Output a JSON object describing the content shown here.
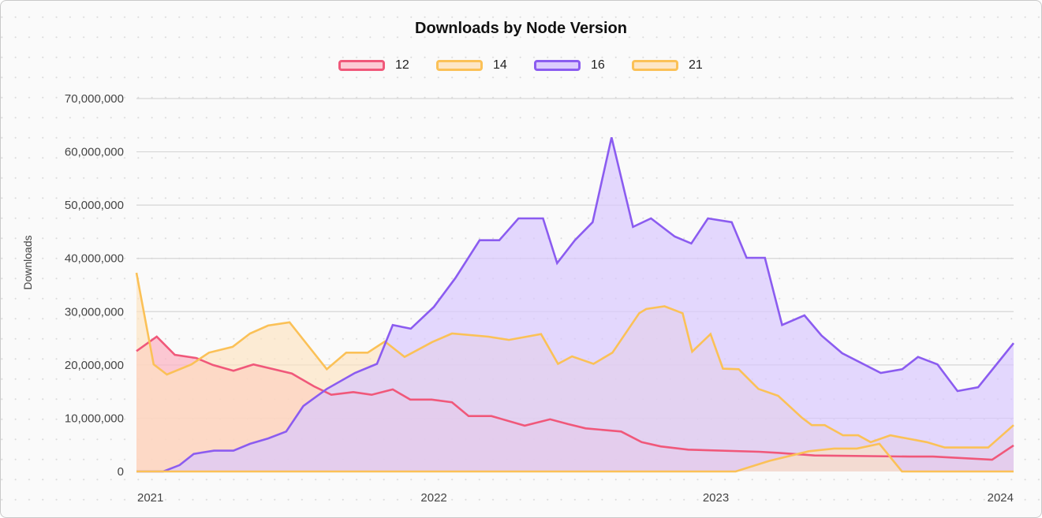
{
  "chart_data": {
    "type": "area",
    "title": "Downloads by Node Version",
    "xlabel": "",
    "ylabel": "Downloads",
    "ylim": [
      0,
      70000000
    ],
    "xlim": [
      2020.945,
      2024.056
    ],
    "grid": true,
    "legend_position": "top",
    "y_ticks": [
      "0",
      "10,000,000",
      "20,000,000",
      "30,000,000",
      "40,000,000",
      "50,000,000",
      "60,000,000",
      "70,000,000"
    ],
    "y_tick_values": [
      0,
      10000000,
      20000000,
      30000000,
      40000000,
      50000000,
      60000000,
      70000000
    ],
    "x_ticks": [
      "2021",
      "2022",
      "2023",
      "2024"
    ],
    "x_tick_values": [
      2021,
      2022,
      2023,
      2024
    ],
    "series": [
      {
        "name": "12",
        "stroke": "#f0587a",
        "fill": "#fbb6c4",
        "x": [
          2020.945,
          2021.017,
          2021.081,
          2021.157,
          2021.216,
          2021.289,
          2021.36,
          2021.496,
          2021.574,
          2021.636,
          2021.714,
          2021.779,
          2021.854,
          2021.916,
          2021.992,
          2022.064,
          2022.123,
          2022.204,
          2022.322,
          2022.412,
          2022.476,
          2022.538,
          2022.664,
          2022.737,
          2022.804,
          2022.902,
          2023.154,
          2023.224,
          2023.35,
          2023.686,
          2023.77,
          2023.98,
          2024.056
        ],
        "values": [
          22600000,
          25300000,
          21900000,
          21300000,
          20000000,
          18900000,
          20100000,
          18400000,
          16000000,
          14400000,
          14900000,
          14400000,
          15400000,
          13500000,
          13500000,
          13000000,
          10400000,
          10400000,
          8600000,
          9800000,
          8900000,
          8100000,
          7500000,
          5500000,
          4700000,
          4100000,
          3700000,
          3500000,
          3000000,
          2800000,
          2800000,
          2200000,
          4900000
        ]
      },
      {
        "name": "14",
        "stroke": "#fbc157",
        "fill": "#fde4c0",
        "x": [
          2020.945,
          2021.006,
          2021.053,
          2021.14,
          2021.202,
          2021.286,
          2021.348,
          2021.412,
          2021.488,
          2021.62,
          2021.689,
          2021.765,
          2021.826,
          2021.896,
          2021.994,
          2022.064,
          2022.193,
          2022.266,
          2022.38,
          2022.44,
          2022.49,
          2022.566,
          2022.633,
          2022.728,
          2022.753,
          2022.818,
          2022.882,
          2022.916,
          2022.981,
          2023.025,
          2023.081,
          2023.151,
          2023.221,
          2023.305,
          2023.34,
          2023.386,
          2023.451,
          2023.505,
          2023.549,
          2023.619,
          2023.658,
          2023.748,
          2023.812,
          2023.966,
          2024.056
        ],
        "values": [
          37300000,
          20100000,
          18200000,
          20100000,
          22300000,
          23400000,
          25900000,
          27400000,
          28000000,
          19200000,
          22300000,
          22300000,
          24400000,
          21500000,
          24300000,
          25900000,
          25300000,
          24700000,
          25800000,
          20200000,
          21600000,
          20200000,
          22300000,
          29700000,
          30500000,
          31000000,
          29700000,
          22500000,
          25800000,
          19300000,
          19200000,
          15500000,
          14200000,
          10100000,
          8700000,
          8700000,
          6800000,
          6800000,
          5500000,
          6800000,
          6400000,
          5500000,
          4500000,
          4500000,
          8700000
        ]
      },
      {
        "name": "16",
        "stroke": "#8b5cf0",
        "fill": "#d9c8fd",
        "x": [
          2020.945,
          2021.04,
          2021.098,
          2021.148,
          2021.22,
          2021.289,
          2021.348,
          2021.412,
          2021.476,
          2021.537,
          2021.62,
          2021.72,
          2021.798,
          2021.854,
          2021.918,
          2022.0,
          2022.076,
          2022.162,
          2022.232,
          2022.3,
          2022.387,
          2022.437,
          2022.5,
          2022.563,
          2022.63,
          2022.706,
          2022.77,
          2022.854,
          2022.913,
          2022.972,
          2023.056,
          2023.109,
          2023.174,
          2023.235,
          2023.314,
          2023.375,
          2023.448,
          2023.585,
          2023.661,
          2023.717,
          2023.786,
          2023.857,
          2023.93,
          2024.056
        ],
        "values": [
          0,
          0,
          1200000,
          3300000,
          3900000,
          3900000,
          5200000,
          6200000,
          7500000,
          12300000,
          15500000,
          18500000,
          20200000,
          27500000,
          26800000,
          30900000,
          36300000,
          43400000,
          43400000,
          47500000,
          47500000,
          39100000,
          43400000,
          46800000,
          62700000,
          45900000,
          47500000,
          44100000,
          42800000,
          47500000,
          46800000,
          40100000,
          40100000,
          27500000,
          29300000,
          25500000,
          22200000,
          18500000,
          19200000,
          21500000,
          20100000,
          15100000,
          15800000,
          24100000
        ]
      },
      {
        "name": "21",
        "stroke": "#fbc157",
        "fill": "#fde4c0",
        "x": [
          2020.945,
          2023.07,
          2023.19,
          2023.33,
          2023.42,
          2023.5,
          2023.58,
          2023.66,
          2024.056
        ],
        "values": [
          0,
          0,
          2000000,
          3800000,
          4300000,
          4300000,
          5200000,
          0,
          0
        ]
      }
    ]
  }
}
